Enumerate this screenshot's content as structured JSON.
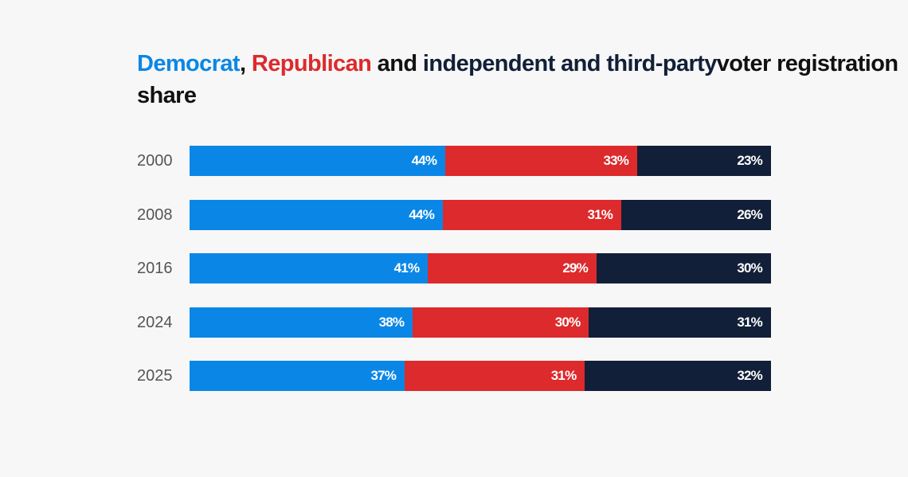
{
  "title": {
    "parts": [
      {
        "text": "Democrat",
        "color": "#0a87e6"
      },
      {
        "text": ", ",
        "color": "#111111"
      },
      {
        "text": "Republican",
        "color": "#dd2a2c"
      },
      {
        "text": " and ",
        "color": "#111111"
      },
      {
        "text": "independent and third-party",
        "color": "#121f38"
      },
      {
        "text": " voter registration share",
        "color": "#111111"
      }
    ]
  },
  "chart_data": {
    "type": "bar",
    "orientation": "horizontal",
    "stacked": true,
    "normalized": true,
    "title": "Democrat, Republican and independent and third-party voter registration share",
    "categories": [
      "2000",
      "2008",
      "2016",
      "2024",
      "2025"
    ],
    "series": [
      {
        "name": "Democrat",
        "color": "#0a87e6",
        "values": [
          44,
          44,
          41,
          38,
          37
        ]
      },
      {
        "name": "Republican",
        "color": "#dd2a2c",
        "values": [
          33,
          31,
          29,
          30,
          31
        ]
      },
      {
        "name": "independent and third-party",
        "color": "#121f38",
        "values": [
          23,
          26,
          30,
          31,
          32
        ]
      }
    ],
    "value_suffix": "%",
    "grid": false,
    "legend": "none (colored words in title)"
  }
}
